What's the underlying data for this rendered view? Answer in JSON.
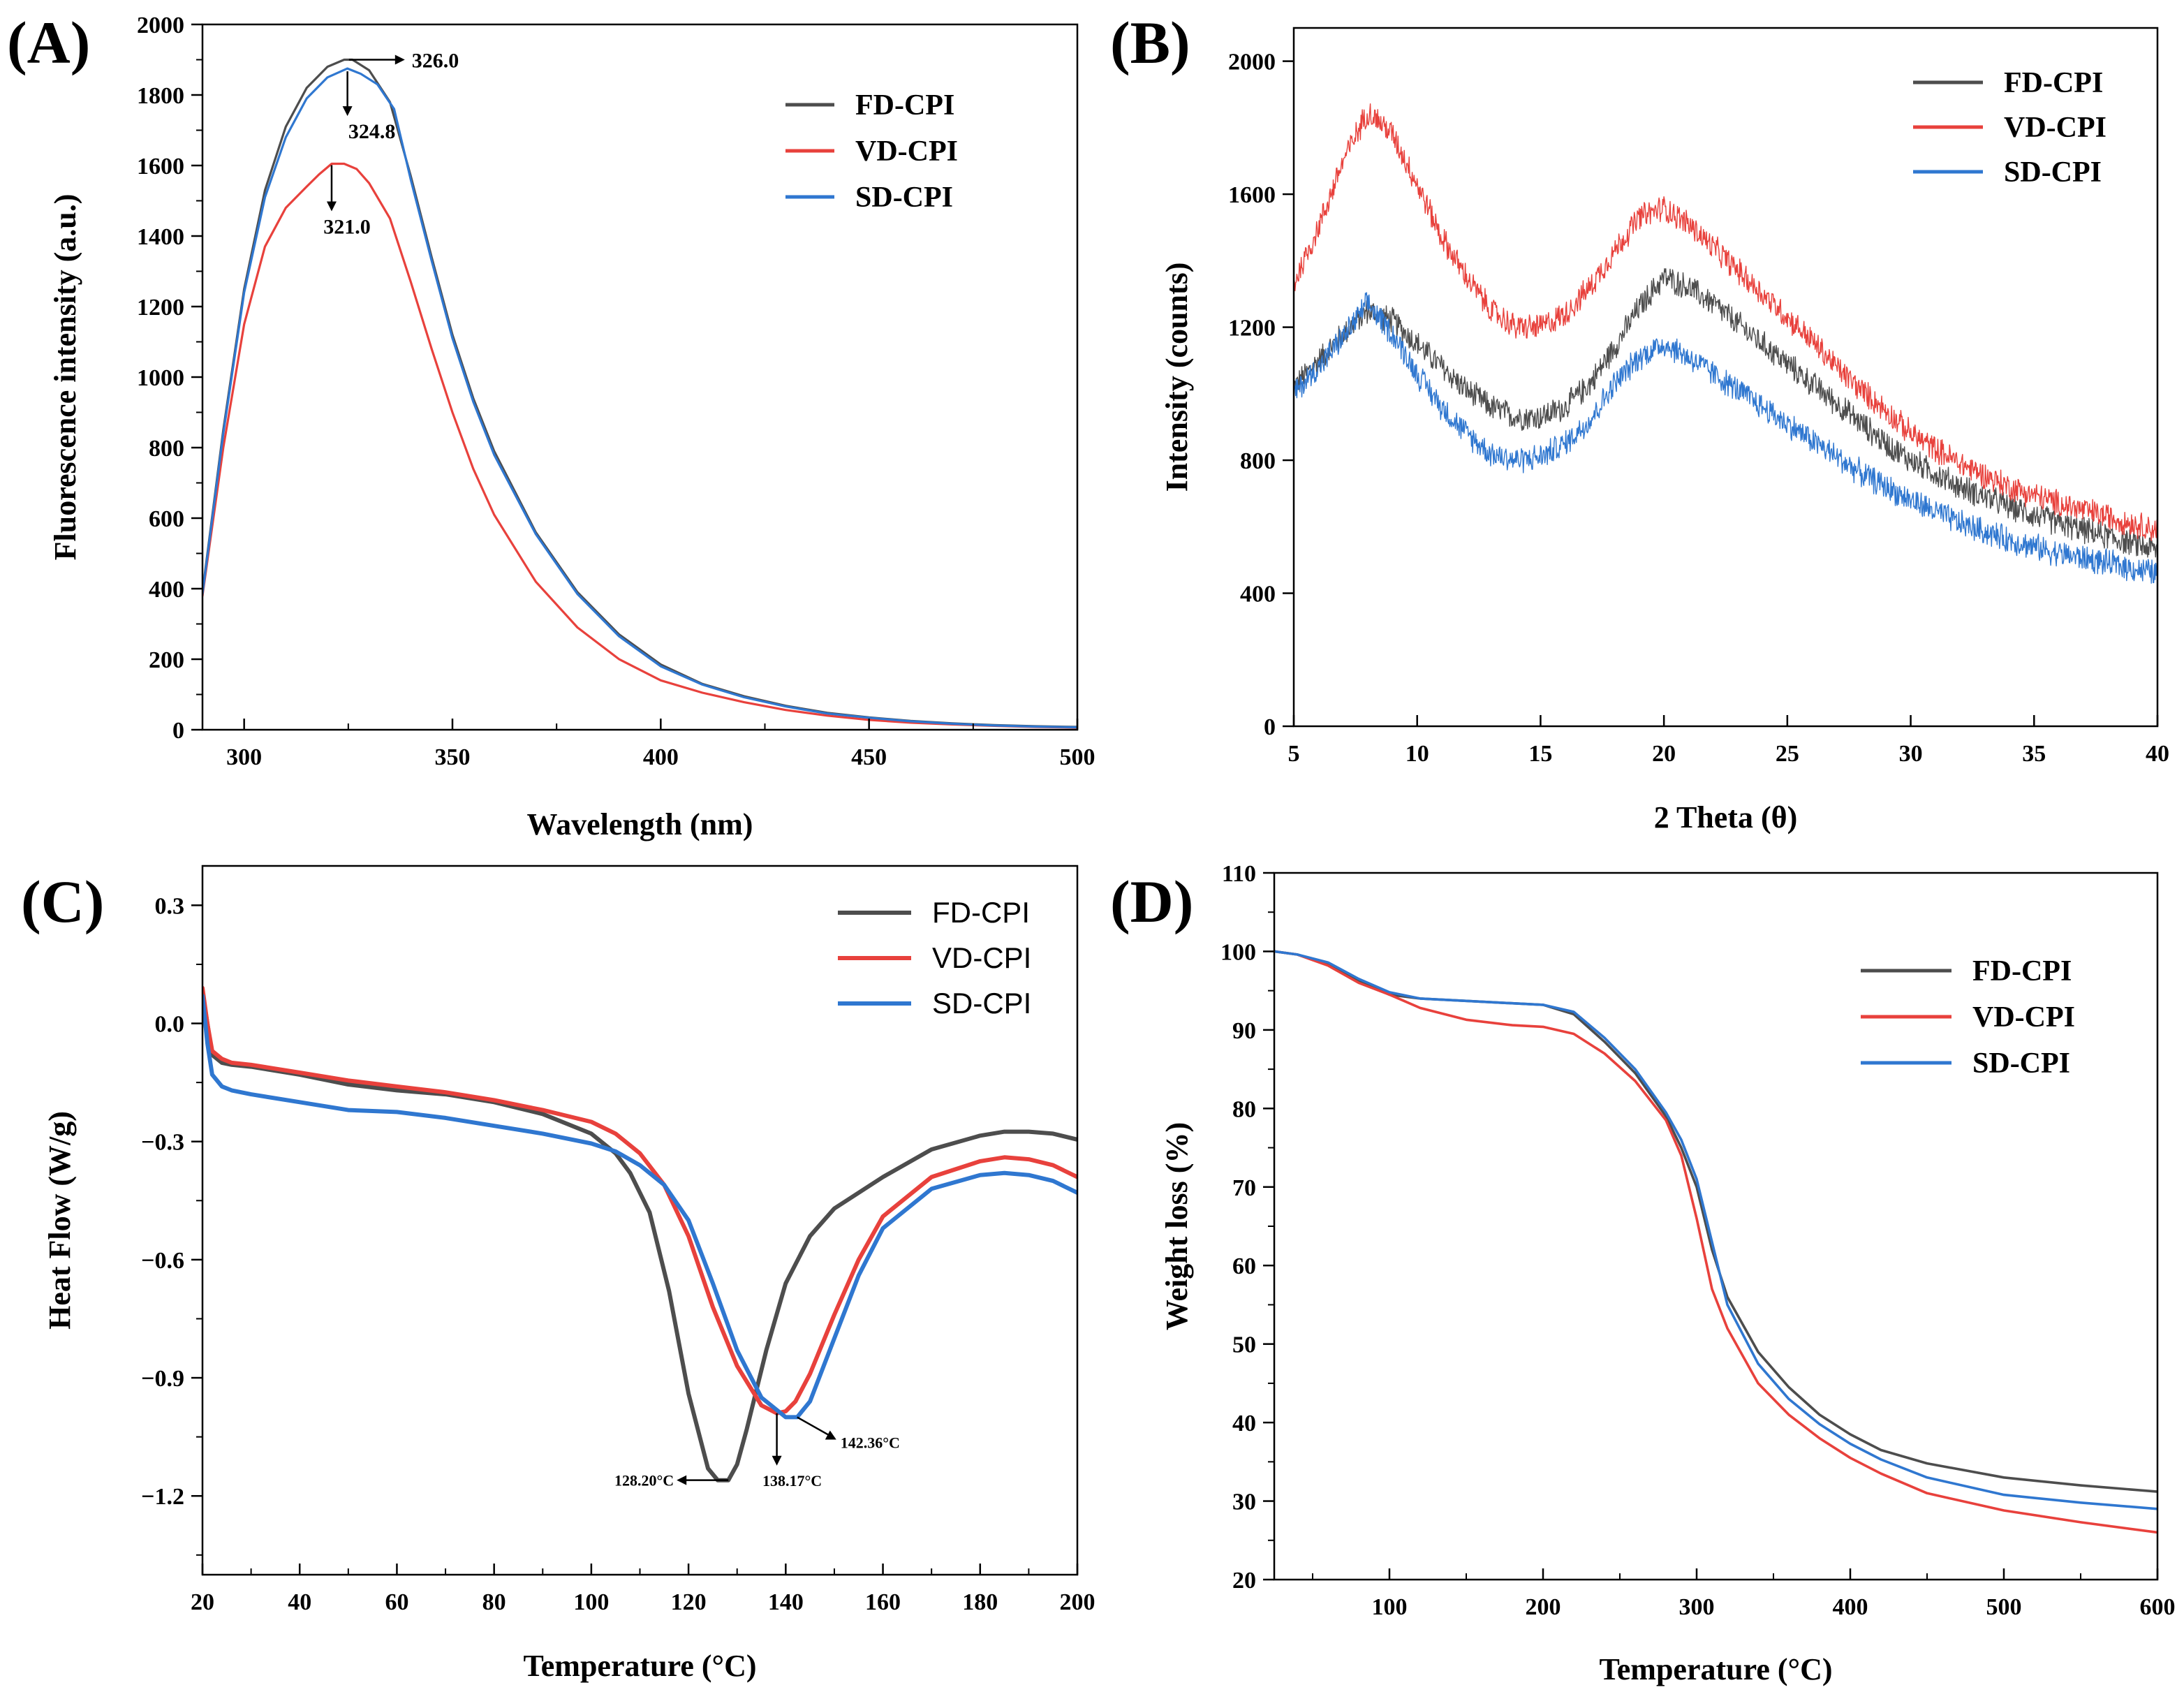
{
  "colors": {
    "FD-CPI": "#4d4d4d",
    "VD-CPI": "#e8413c",
    "SD-CPI": "#2f77d0"
  },
  "chart_data": [
    {
      "id": "A",
      "label": "(A)",
      "type": "line",
      "xlabel": "Wavelength (nm)",
      "ylabel": "Fluorescence intensity (a.u.)",
      "xlim": [
        290,
        500
      ],
      "ylim": [
        0,
        2000
      ],
      "xticks": [
        300,
        350,
        400,
        450,
        500
      ],
      "yticks": [
        0,
        200,
        400,
        600,
        800,
        1000,
        1200,
        1400,
        1600,
        1800,
        2000
      ],
      "legend": "top-right",
      "series": [
        {
          "name": "FD-CPI",
          "x": [
            290,
            295,
            300,
            305,
            310,
            315,
            320,
            324,
            326,
            330,
            335,
            340,
            345,
            350,
            355,
            360,
            370,
            380,
            390,
            400,
            410,
            420,
            430,
            440,
            450,
            460,
            470,
            480,
            490,
            500
          ],
          "y": [
            390,
            850,
            1250,
            1530,
            1710,
            1820,
            1880,
            1900,
            1900,
            1870,
            1780,
            1570,
            1340,
            1120,
            940,
            790,
            560,
            390,
            270,
            185,
            130,
            95,
            68,
            48,
            35,
            25,
            18,
            13,
            10,
            8
          ]
        },
        {
          "name": "VD-CPI",
          "x": [
            290,
            295,
            300,
            305,
            310,
            315,
            318,
            321,
            324,
            327,
            330,
            335,
            340,
            345,
            350,
            355,
            360,
            370,
            380,
            390,
            400,
            410,
            420,
            430,
            440,
            450,
            460,
            470,
            480,
            490,
            500
          ],
          "y": [
            380,
            800,
            1150,
            1370,
            1480,
            1540,
            1575,
            1605,
            1605,
            1590,
            1550,
            1450,
            1270,
            1080,
            900,
            740,
            610,
            420,
            290,
            200,
            140,
            105,
            78,
            56,
            40,
            28,
            20,
            15,
            11,
            8,
            6
          ]
        },
        {
          "name": "SD-CPI",
          "x": [
            290,
            295,
            300,
            305,
            310,
            315,
            320,
            324.8,
            328,
            332,
            336,
            340,
            345,
            350,
            355,
            360,
            370,
            380,
            390,
            400,
            410,
            420,
            430,
            440,
            450,
            460,
            470,
            480,
            490,
            500
          ],
          "y": [
            385,
            840,
            1240,
            1510,
            1680,
            1790,
            1850,
            1875,
            1860,
            1830,
            1760,
            1560,
            1330,
            1110,
            930,
            780,
            555,
            385,
            265,
            180,
            128,
            92,
            66,
            46,
            34,
            24,
            17,
            12,
            9,
            7
          ]
        }
      ],
      "annotations": [
        {
          "text": "326.0",
          "x": 326.0,
          "y": 1900
        },
        {
          "text": "324.8",
          "x": 324.8,
          "y": 1875
        },
        {
          "text": "321.0",
          "x": 321.0,
          "y": 1605
        }
      ]
    },
    {
      "id": "B",
      "label": "(B)",
      "type": "line",
      "xlabel": "2 Theta (θ)",
      "ylabel": "Intensity (counts)",
      "xlim": [
        5,
        40
      ],
      "ylim": [
        0,
        2100
      ],
      "xticks": [
        5,
        10,
        15,
        20,
        25,
        30,
        35,
        40
      ],
      "yticks": [
        0,
        400,
        800,
        1200,
        1600,
        2000
      ],
      "legend": "top-right",
      "noise": 45,
      "series": [
        {
          "name": "FD-CPI",
          "x": [
            5,
            6,
            7,
            8,
            9,
            10,
            11,
            12,
            13,
            14,
            15,
            16,
            17,
            18,
            19,
            20,
            21,
            22,
            23,
            24,
            25,
            26,
            27,
            28,
            29,
            30,
            32,
            34,
            36,
            38,
            40
          ],
          "y": [
            1020,
            1100,
            1180,
            1250,
            1220,
            1150,
            1080,
            1010,
            960,
            930,
            930,
            960,
            1030,
            1140,
            1260,
            1350,
            1320,
            1270,
            1210,
            1150,
            1090,
            1030,
            970,
            910,
            850,
            800,
            720,
            660,
            610,
            570,
            530
          ]
        },
        {
          "name": "VD-CPI",
          "x": [
            5,
            6,
            7,
            8,
            9,
            10,
            11,
            12,
            13,
            14,
            15,
            16,
            17,
            18,
            19,
            20,
            21,
            22,
            23,
            24,
            25,
            26,
            27,
            28,
            29,
            30,
            32,
            34,
            36,
            38,
            40
          ],
          "y": [
            1330,
            1500,
            1700,
            1850,
            1780,
            1630,
            1470,
            1350,
            1250,
            1200,
            1200,
            1240,
            1320,
            1430,
            1530,
            1560,
            1510,
            1440,
            1370,
            1300,
            1230,
            1160,
            1080,
            1010,
            950,
            880,
            790,
            720,
            670,
            630,
            590
          ]
        },
        {
          "name": "SD-CPI",
          "x": [
            5,
            6,
            7,
            8,
            9,
            10,
            11,
            12,
            13,
            14,
            15,
            16,
            17,
            18,
            19,
            20,
            21,
            22,
            23,
            24,
            25,
            26,
            27,
            28,
            29,
            30,
            32,
            34,
            36,
            38,
            40
          ],
          "y": [
            1000,
            1080,
            1170,
            1270,
            1180,
            1060,
            960,
            880,
            820,
            800,
            810,
            850,
            920,
            1030,
            1110,
            1150,
            1110,
            1060,
            1010,
            960,
            910,
            860,
            810,
            760,
            720,
            680,
            610,
            560,
            520,
            490,
            460
          ]
        }
      ]
    },
    {
      "id": "C",
      "label": "(C)",
      "type": "line",
      "xlabel": "Temperature (°C)",
      "ylabel": "Heat Flow (W/g)",
      "xlim": [
        20,
        200
      ],
      "ylim": [
        -1.4,
        0.4
      ],
      "xticks": [
        20,
        40,
        60,
        80,
        100,
        120,
        140,
        160,
        180,
        200
      ],
      "yticks": [
        -1.2,
        -0.9,
        -0.6,
        -0.3,
        0.0,
        0.3
      ],
      "ytick_labels": [
        "−1.2",
        "−0.9",
        "−0.6",
        "−0.3",
        "0.0",
        "0.3"
      ],
      "legend": "top-right",
      "series": [
        {
          "name": "FD-CPI",
          "x": [
            20,
            21,
            22,
            24,
            26,
            30,
            40,
            50,
            60,
            70,
            80,
            90,
            100,
            105,
            108,
            112,
            116,
            120,
            124,
            126,
            128.2,
            130,
            132,
            136,
            140,
            145,
            150,
            160,
            170,
            180,
            185,
            190,
            195,
            200
          ],
          "y": [
            0.08,
            0.0,
            -0.08,
            -0.1,
            -0.105,
            -0.11,
            -0.13,
            -0.155,
            -0.17,
            -0.18,
            -0.2,
            -0.23,
            -0.28,
            -0.33,
            -0.38,
            -0.48,
            -0.68,
            -0.94,
            -1.13,
            -1.16,
            -1.16,
            -1.12,
            -1.03,
            -0.83,
            -0.66,
            -0.54,
            -0.47,
            -0.39,
            -0.32,
            -0.285,
            -0.275,
            -0.275,
            -0.28,
            -0.295
          ]
        },
        {
          "name": "VD-CPI",
          "x": [
            20,
            21,
            22,
            24,
            26,
            30,
            40,
            50,
            60,
            70,
            80,
            90,
            100,
            105,
            110,
            115,
            120,
            125,
            130,
            135,
            138.17,
            140,
            142,
            145,
            150,
            155,
            160,
            170,
            180,
            185,
            190,
            195,
            200
          ],
          "y": [
            0.09,
            0.0,
            -0.07,
            -0.09,
            -0.1,
            -0.105,
            -0.125,
            -0.145,
            -0.16,
            -0.175,
            -0.195,
            -0.22,
            -0.25,
            -0.28,
            -0.33,
            -0.41,
            -0.54,
            -0.72,
            -0.87,
            -0.97,
            -0.99,
            -0.985,
            -0.96,
            -0.89,
            -0.74,
            -0.6,
            -0.49,
            -0.39,
            -0.35,
            -0.34,
            -0.345,
            -0.36,
            -0.39
          ]
        },
        {
          "name": "SD-CPI",
          "x": [
            20,
            21,
            22,
            24,
            26,
            30,
            40,
            50,
            60,
            70,
            80,
            90,
            100,
            105,
            110,
            115,
            120,
            125,
            130,
            135,
            140,
            142.36,
            145,
            150,
            155,
            160,
            170,
            180,
            185,
            190,
            195,
            200
          ],
          "y": [
            0.07,
            -0.05,
            -0.13,
            -0.16,
            -0.17,
            -0.18,
            -0.2,
            -0.22,
            -0.225,
            -0.24,
            -0.26,
            -0.28,
            -0.305,
            -0.325,
            -0.36,
            -0.41,
            -0.5,
            -0.66,
            -0.83,
            -0.95,
            -1.0,
            -1.0,
            -0.96,
            -0.8,
            -0.64,
            -0.52,
            -0.42,
            -0.385,
            -0.38,
            -0.385,
            -0.4,
            -0.43
          ]
        }
      ],
      "annotations": [
        {
          "text": "128.20°C",
          "x": 128.2,
          "y": -1.16
        },
        {
          "text": "138.17°C",
          "x": 138.17,
          "y": -0.99
        },
        {
          "text": "142.36°C",
          "x": 142.36,
          "y": -1.0
        }
      ]
    },
    {
      "id": "D",
      "label": "(D)",
      "type": "line",
      "xlabel": "Temperature (°C)",
      "ylabel": "Weight loss (%)",
      "xlim": [
        25,
        600
      ],
      "ylim": [
        20,
        110
      ],
      "xticks": [
        100,
        200,
        300,
        400,
        500,
        600
      ],
      "yticks": [
        20,
        30,
        40,
        50,
        60,
        70,
        80,
        90,
        100,
        110
      ],
      "legend": "top-right",
      "series": [
        {
          "name": "FD-CPI",
          "x": [
            25,
            40,
            60,
            80,
            100,
            120,
            150,
            180,
            200,
            220,
            240,
            260,
            280,
            290,
            300,
            310,
            320,
            340,
            360,
            380,
            400,
            420,
            450,
            500,
            550,
            600
          ],
          "y": [
            100,
            99.6,
            98.4,
            96.2,
            94.5,
            94,
            93.7,
            93.4,
            93.2,
            92,
            88.5,
            84.5,
            79,
            75,
            70,
            62,
            56,
            49,
            44.5,
            41,
            38.5,
            36.5,
            34.8,
            33,
            32,
            31.2
          ]
        },
        {
          "name": "VD-CPI",
          "x": [
            25,
            40,
            60,
            80,
            100,
            120,
            150,
            180,
            200,
            220,
            240,
            260,
            280,
            290,
            300,
            310,
            320,
            340,
            360,
            380,
            400,
            420,
            450,
            500,
            550,
            600
          ],
          "y": [
            100,
            99.6,
            98.2,
            96,
            94.5,
            92.8,
            91.3,
            90.6,
            90.4,
            89.5,
            87,
            83.5,
            78.5,
            74,
            66,
            57,
            52,
            45,
            41,
            38,
            35.5,
            33.5,
            31,
            28.8,
            27.3,
            26
          ]
        },
        {
          "name": "SD-CPI",
          "x": [
            25,
            40,
            60,
            80,
            100,
            120,
            150,
            180,
            200,
            220,
            240,
            260,
            280,
            290,
            300,
            310,
            320,
            340,
            360,
            380,
            400,
            420,
            450,
            500,
            550,
            600
          ],
          "y": [
            100,
            99.6,
            98.6,
            96.5,
            94.8,
            94,
            93.7,
            93.4,
            93.2,
            92.3,
            89,
            85,
            79.5,
            76,
            71,
            63,
            55,
            47.5,
            43,
            39.8,
            37.3,
            35.3,
            33,
            30.8,
            29.8,
            29
          ]
        }
      ]
    }
  ]
}
